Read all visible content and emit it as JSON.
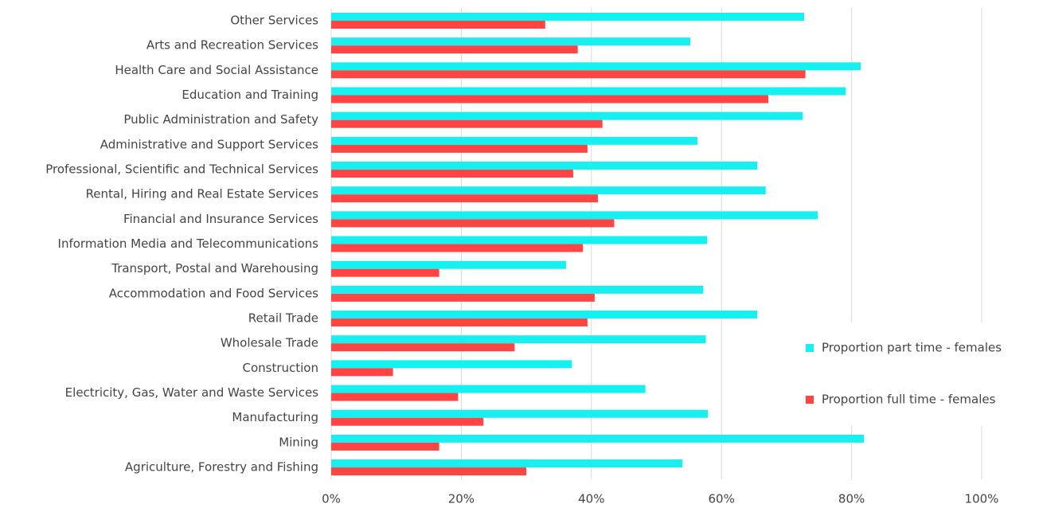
{
  "chart_data": {
    "type": "hbar",
    "categories": [
      "Other Services",
      "Arts and Recreation Services",
      "Health Care and Social Assistance",
      "Education and Training",
      "Public Administration and Safety",
      "Administrative and Support Services",
      "Professional, Scientific and Technical Services",
      "Rental, Hiring and Real Estate Services",
      "Financial and Insurance Services",
      "Information Media and Telecommunications",
      "Transport, Postal and Warehousing",
      "Accommodation and Food Services",
      "Retail Trade",
      "Wholesale Trade",
      "Construction",
      "Electricity, Gas, Water and Waste Services",
      "Manufacturing",
      "Mining",
      "Agriculture, Forestry and Fishing"
    ],
    "series": [
      {
        "name": "Proportion part time - females",
        "color": "#17f0f0",
        "values": [
          72.7,
          55.2,
          81.4,
          79.1,
          72.5,
          56.3,
          65.5,
          66.8,
          74.8,
          57.8,
          36.1,
          57.2,
          65.5,
          57.6,
          37.0,
          48.3,
          57.9,
          81.9,
          54.0
        ]
      },
      {
        "name": "Proportion full time - females",
        "color": "#ff4444",
        "values": [
          32.9,
          37.9,
          72.9,
          67.2,
          41.7,
          39.4,
          37.2,
          41.0,
          43.5,
          38.7,
          16.6,
          40.5,
          39.4,
          28.2,
          9.5,
          19.5,
          23.4,
          16.6,
          30.0
        ]
      }
    ],
    "xlim": [
      0,
      100
    ],
    "xticks": [
      {
        "value": 0,
        "label": "0%"
      },
      {
        "value": 20,
        "label": "20%"
      },
      {
        "value": 40,
        "label": "40%"
      },
      {
        "value": 60,
        "label": "60%"
      },
      {
        "value": 80,
        "label": "80%"
      },
      {
        "value": 100,
        "label": "100%"
      }
    ],
    "grid": true,
    "legend": "right"
  }
}
